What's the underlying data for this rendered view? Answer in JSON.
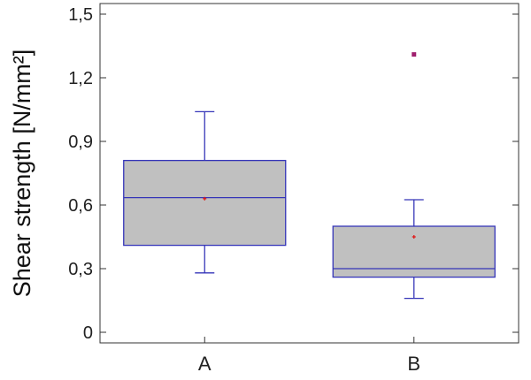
{
  "chart_data": {
    "type": "box",
    "ylabel": "Shear strength [N/mm²]",
    "xlabel": "",
    "ylim": [
      -0.05,
      1.55
    ],
    "yticks": [
      0,
      0.3,
      0.6,
      0.9,
      1.2,
      1.5
    ],
    "ytick_labels": [
      "0",
      "0,3",
      "0,6",
      "0,9",
      "1,2",
      "1,5"
    ],
    "grid": false,
    "categories": [
      "A",
      "B"
    ],
    "boxes": [
      {
        "category": "A",
        "whisker_low": 0.28,
        "q1": 0.41,
        "median": 0.635,
        "q3": 0.81,
        "whisker_high": 1.04,
        "mean": 0.63,
        "outliers": []
      },
      {
        "category": "B",
        "whisker_low": 0.16,
        "q1": 0.26,
        "median": 0.3,
        "q3": 0.5,
        "whisker_high": 0.625,
        "mean": 0.45,
        "outliers": [
          1.31
        ]
      }
    ],
    "colors": {
      "box_fill": "#c0c0c0",
      "box_edge": "#3535b8",
      "mean_marker": "#e01818",
      "outlier_marker": "#a0206e",
      "axis": "#333333"
    }
  }
}
